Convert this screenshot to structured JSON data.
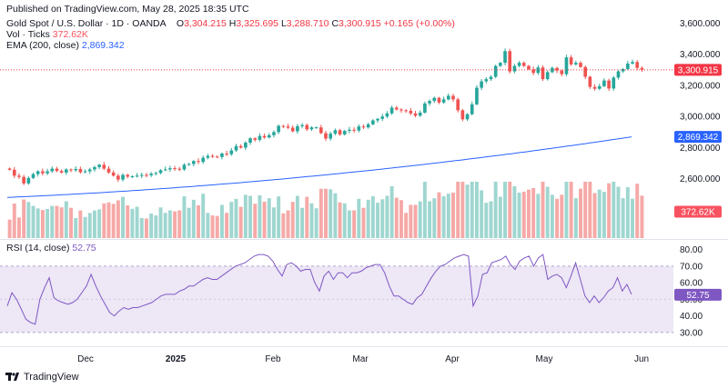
{
  "header": {
    "published": "Published on TradingView.com, May 28, 2025 18:35 UTC"
  },
  "legend": {
    "symbol": "Gold Spot / U.S. Dollar · 1D · OANDA",
    "o_label": "O",
    "o_value": "3,304.215",
    "h_label": "H",
    "h_value": "3,325.695",
    "l_label": "L",
    "l_value": "3,288.710",
    "c_label": "C",
    "c_value": "3,300.915",
    "change": "+0.165 (+0.00%)",
    "vol_label": "Vol · Ticks",
    "vol_value": "372.62K",
    "ema_label": "EMA (200, close)",
    "ema_value": "2,869.342",
    "rsi_label": "RSI (14, close)",
    "rsi_value": "52.75"
  },
  "badges": {
    "price": "3,300.915",
    "ema": "2,869.342",
    "volume": "372.62K",
    "rsi": "52.75"
  },
  "branding": {
    "name": "TradingView"
  },
  "colors": {
    "up": "#26a69a",
    "down": "#ef5350",
    "ema": "#2962ff",
    "rsi": "#7e57c2",
    "rsi_band": "#ede7f6"
  },
  "chart_data": {
    "type": "candlestick",
    "title": "Gold Spot / U.S. Dollar · 1D · OANDA",
    "price_axis": {
      "ticks": [
        "3,600.000",
        "3,400.000",
        "3,200.000",
        "3,000.000",
        "2,800.000",
        "2,600.000",
        "2,400.000"
      ],
      "range": [
        2330,
        3620
      ]
    },
    "rsi_axis": {
      "ticks": [
        "80.00",
        "70.00",
        "60.00",
        "50.00",
        "40.00",
        "30.00"
      ],
      "range": [
        25,
        82
      ],
      "band": [
        30,
        70
      ]
    },
    "x_labels": [
      "Dec",
      "2025",
      "Feb",
      "Mar",
      "Apr",
      "May",
      "Jun"
    ],
    "close": [
      2658,
      2620,
      2612,
      2570,
      2605,
      2630,
      2648,
      2635,
      2648,
      2665,
      2650,
      2640,
      2660,
      2655,
      2663,
      2642,
      2648,
      2660,
      2675,
      2690,
      2665,
      2640,
      2620,
      2595,
      2625,
      2614,
      2616,
      2620,
      2625,
      2623,
      2633,
      2637,
      2655,
      2660,
      2668,
      2664,
      2660,
      2690,
      2695,
      2714,
      2708,
      2735,
      2747,
      2742,
      2740,
      2762,
      2758,
      2782,
      2810,
      2800,
      2832,
      2860,
      2850,
      2875,
      2865,
      2880,
      2900,
      2940,
      2936,
      2928,
      2905,
      2938,
      2945,
      2918,
      2930,
      2930,
      2893,
      2858,
      2890,
      2912,
      2885,
      2908,
      2915,
      2910,
      2936,
      2930,
      2950,
      2975,
      2985,
      3000,
      3020,
      3057,
      3045,
      3040,
      3037,
      3020,
      3005,
      3025,
      3084,
      3100,
      3120,
      3090,
      3110,
      3133,
      3110,
      3040,
      2982,
      3015,
      3078,
      3185,
      3226,
      3240,
      3255,
      3325,
      3345,
      3420,
      3290,
      3325,
      3345,
      3325,
      3303,
      3280,
      3315,
      3240,
      3285,
      3312,
      3295,
      3272,
      3380,
      3335,
      3345,
      3318,
      3255,
      3190,
      3178,
      3195,
      3231,
      3180,
      3250,
      3290,
      3305,
      3340,
      3350,
      3312,
      3300
    ],
    "ema": [
      2480,
      2812,
      2869.342
    ],
    "rsi": [
      46,
      54,
      50,
      44,
      38,
      36,
      35,
      50,
      57,
      63,
      51,
      49,
      48,
      47,
      48,
      50,
      54,
      58,
      65,
      58,
      52,
      47,
      42,
      40,
      43,
      45,
      44,
      45,
      45,
      46,
      47,
      48,
      50,
      52,
      53,
      53,
      53,
      55,
      56,
      58,
      58,
      60,
      62,
      63,
      62,
      62,
      64,
      66,
      68,
      70,
      71,
      72,
      74,
      76,
      77,
      77,
      76,
      73,
      68,
      64,
      71,
      72,
      70,
      67,
      68,
      68,
      60,
      55,
      64,
      67,
      62,
      66,
      66,
      63,
      66,
      66,
      67,
      69,
      70,
      71,
      71,
      66,
      58,
      52,
      52,
      50,
      48,
      47,
      51,
      53,
      58,
      63,
      67,
      70,
      71,
      73,
      75,
      76,
      77,
      76,
      46,
      52,
      65,
      66,
      72,
      73,
      74,
      76,
      71,
      68,
      73,
      75,
      76,
      70,
      75,
      77,
      62,
      64,
      65,
      63,
      57,
      64,
      72,
      62,
      52,
      48,
      52,
      48,
      51,
      55,
      57,
      63,
      55,
      59,
      53
    ]
  }
}
